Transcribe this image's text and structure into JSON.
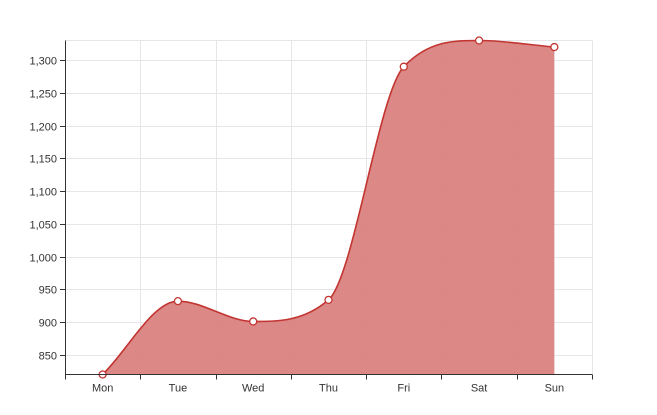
{
  "chart_data": {
    "type": "area",
    "title": "",
    "xlabel": "",
    "ylabel": "",
    "categories": [
      "Mon",
      "Tue",
      "Wed",
      "Thu",
      "Fri",
      "Sat",
      "Sun"
    ],
    "series": [
      {
        "values": [
          820,
          932,
          901,
          934,
          1290,
          1330,
          1320
        ]
      }
    ],
    "ylim": [
      820,
      1330
    ],
    "yticks": [
      850,
      900,
      950,
      1000,
      1050,
      1100,
      1150,
      1200,
      1250,
      1300
    ],
    "ytick_labels": [
      "850",
      "900",
      "950",
      "1,000",
      "1,050",
      "1,100",
      "1,150",
      "1,200",
      "1,250",
      "1,300"
    ],
    "smooth": true,
    "grid": true,
    "legend": "none",
    "colors": {
      "line": "#c23531",
      "fill": "#d9827f",
      "point_fill": "#ffffff",
      "grid": "#e6e6e6",
      "axis": "#333333"
    }
  }
}
